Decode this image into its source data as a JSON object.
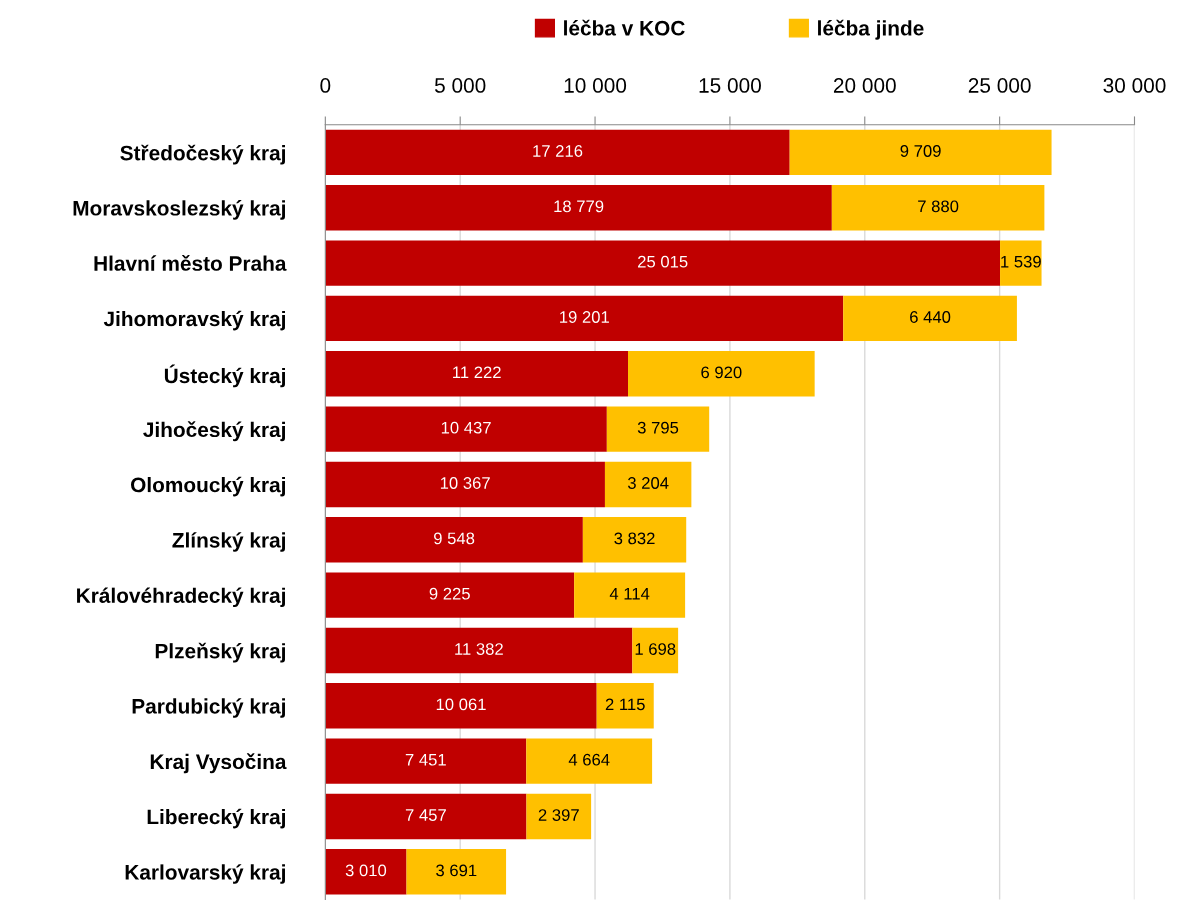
{
  "chart_data": {
    "type": "bar",
    "orientation": "horizontal",
    "stacked": true,
    "categories": [
      "Středočeský kraj",
      "Moravskoslezský kraj",
      "Hlavní město Praha",
      "Jihomoravský kraj",
      "Ústecký kraj",
      "Jihočeský kraj",
      "Olomoucký kraj",
      "Zlínský kraj",
      "Královéhradecký kraj",
      "Plzeňský kraj",
      "Pardubický kraj",
      "Kraj Vysočina",
      "Liberecký kraj",
      "Karlovarský kraj"
    ],
    "series": [
      {
        "name": "léčba v KOC",
        "color": "#c00000",
        "values": [
          17216,
          18779,
          25015,
          19201,
          11222,
          10437,
          10367,
          9548,
          9225,
          11382,
          10061,
          7451,
          7457,
          3010
        ],
        "value_labels": [
          "17 216",
          "18 779",
          "25 015",
          "19 201",
          "11 222",
          "10 437",
          "10 367",
          "9 548",
          "9 225",
          "11 382",
          "10 061",
          "7 451",
          "7 457",
          "3 010"
        ]
      },
      {
        "name": "léčba jinde",
        "color": "#ffc000",
        "values": [
          9709,
          7880,
          1539,
          6440,
          6920,
          3795,
          3204,
          3832,
          4114,
          1698,
          2115,
          4664,
          2397,
          3691
        ],
        "value_labels": [
          "9 709",
          "7 880",
          "1 539",
          "6 440",
          "6 920",
          "3 795",
          "3 204",
          "3 832",
          "4 114",
          "1 698",
          "2 115",
          "4 664",
          "2 397",
          "3 691"
        ]
      }
    ],
    "xlim": [
      0,
      30000
    ],
    "xticks": [
      0,
      {
        "value": 5000,
        "label": "5 000"
      },
      {
        "value": 10000,
        "label": "10 000"
      },
      {
        "value": 15000,
        "label": "15 000"
      },
      {
        "value": 20000,
        "label": "20 000"
      },
      {
        "value": 25000,
        "label": "25 000"
      },
      {
        "value": 30000,
        "label": "30 000"
      }
    ],
    "grid": "x",
    "legend": "top"
  }
}
